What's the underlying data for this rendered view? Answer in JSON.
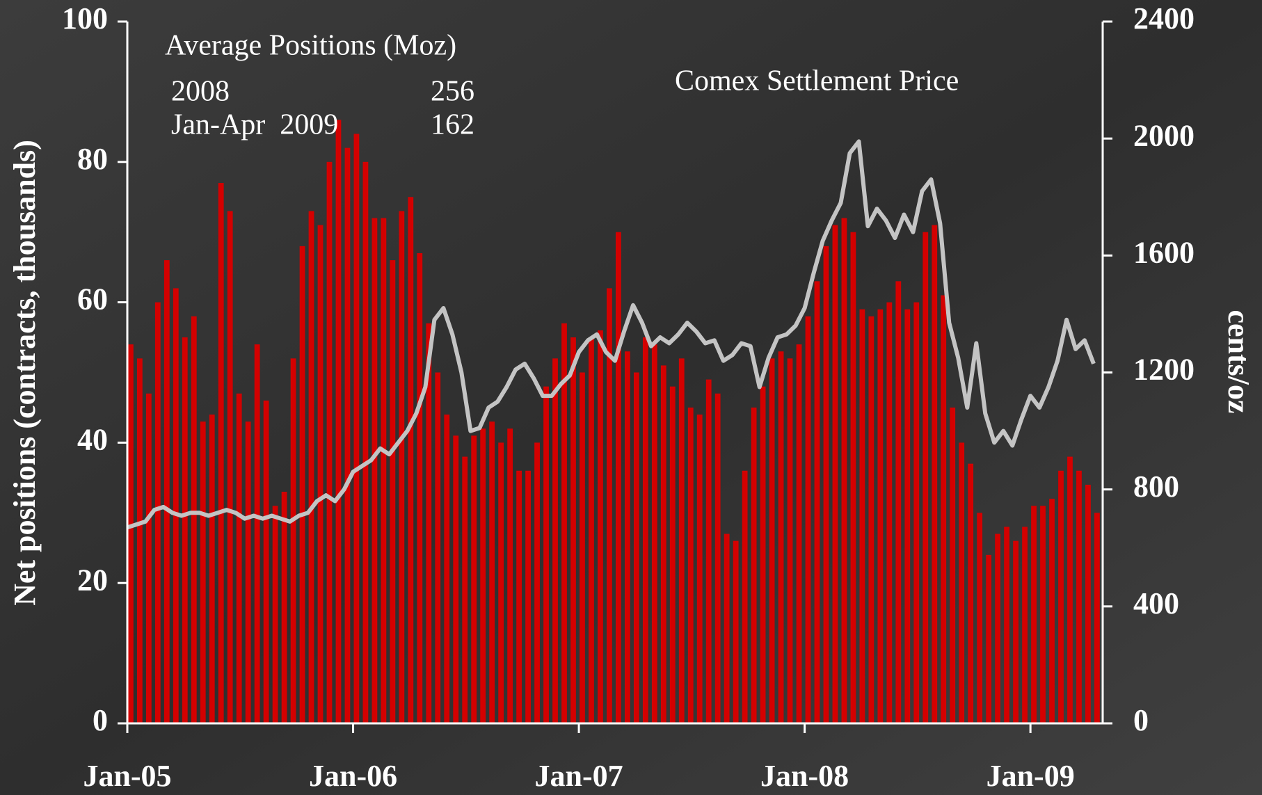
{
  "chart_data": {
    "type": "combo",
    "annotations": {
      "title": "Average Positions (Moz)",
      "rows": [
        [
          "2008",
          256
        ],
        [
          "Jan-Apr  2009",
          162
        ]
      ]
    },
    "ylabel": "Net positions (contracts, thousands)",
    "y2label": "cents/oz",
    "xlim": [
      2005,
      2009.32
    ],
    "xticks": [
      {
        "value": 2005,
        "label": "Jan-05"
      },
      {
        "value": 2006,
        "label": "Jan-06"
      },
      {
        "value": 2007,
        "label": "Jan-07"
      },
      {
        "value": 2008,
        "label": "Jan-08"
      },
      {
        "value": 2009,
        "label": "Jan-09"
      }
    ],
    "ylim": [
      0,
      100
    ],
    "yticks": [
      0,
      20,
      40,
      60,
      80,
      100
    ],
    "y2lim": [
      0,
      2400
    ],
    "y2ticks": [
      0,
      400,
      800,
      1200,
      1600,
      2000,
      2400
    ],
    "x": [
      2005,
      2005.04,
      2005.08,
      2005.12,
      2005.16,
      2005.2,
      2005.24,
      2005.28,
      2005.32,
      2005.36,
      2005.4,
      2005.44,
      2005.48,
      2005.52,
      2005.56,
      2005.6,
      2005.64,
      2005.68,
      2005.72,
      2005.76,
      2005.8,
      2005.84,
      2005.88,
      2005.92,
      2005.96,
      2006,
      2006.04,
      2006.08,
      2006.12,
      2006.16,
      2006.2,
      2006.24,
      2006.28,
      2006.32,
      2006.36,
      2006.4,
      2006.44,
      2006.48,
      2006.52,
      2006.56,
      2006.6,
      2006.64,
      2006.68,
      2006.72,
      2006.76,
      2006.8,
      2006.84,
      2006.88,
      2006.92,
      2006.96,
      2007,
      2007.04,
      2007.08,
      2007.12,
      2007.16,
      2007.2,
      2007.24,
      2007.28,
      2007.32,
      2007.36,
      2007.4,
      2007.44,
      2007.48,
      2007.52,
      2007.56,
      2007.6,
      2007.64,
      2007.68,
      2007.72,
      2007.76,
      2007.8,
      2007.84,
      2007.88,
      2007.92,
      2007.96,
      2008,
      2008.04,
      2008.08,
      2008.12,
      2008.16,
      2008.2,
      2008.24,
      2008.28,
      2008.32,
      2008.36,
      2008.4,
      2008.44,
      2008.48,
      2008.52,
      2008.56,
      2008.6,
      2008.64,
      2008.68,
      2008.72,
      2008.76,
      2008.8,
      2008.84,
      2008.88,
      2008.92,
      2008.96,
      2009,
      2009.04,
      2009.08,
      2009.12,
      2009.16,
      2009.2,
      2009.24,
      2009.28
    ],
    "series": [
      {
        "type": "bar",
        "color": "#d40000",
        "values": [
          54,
          52,
          47,
          60,
          66,
          62,
          55,
          58,
          43,
          44,
          77,
          73,
          47,
          43,
          54,
          46,
          31,
          33,
          52,
          68,
          73,
          71,
          80,
          86,
          82,
          84,
          80,
          72,
          72,
          66,
          73,
          75,
          67,
          57,
          50,
          44,
          41,
          38,
          41,
          42,
          43,
          40,
          42,
          36,
          36,
          40,
          48,
          52,
          57,
          55,
          50,
          55,
          56,
          62,
          70,
          53,
          50,
          55,
          54,
          51,
          48,
          52,
          45,
          44,
          49,
          47,
          27,
          26,
          36,
          45,
          48,
          52,
          53,
          52,
          54,
          58,
          63,
          68,
          71,
          72,
          70,
          59,
          58,
          59,
          60,
          63,
          59,
          60,
          70,
          71,
          61,
          45,
          40,
          37,
          30,
          24,
          27,
          28,
          26,
          28,
          31,
          31,
          32,
          36,
          38,
          36,
          34,
          30
        ]
      },
      {
        "type": "line",
        "axis": "y2",
        "name": "Comex Settlement Price",
        "color": "#c4c4c4",
        "values": [
          670,
          680,
          690,
          730,
          740,
          720,
          710,
          720,
          720,
          710,
          720,
          730,
          720,
          700,
          710,
          700,
          710,
          700,
          690,
          710,
          720,
          760,
          780,
          760,
          800,
          860,
          880,
          900,
          940,
          920,
          960,
          1000,
          1060,
          1150,
          1380,
          1420,
          1330,
          1200,
          1000,
          1010,
          1080,
          1100,
          1150,
          1210,
          1230,
          1180,
          1120,
          1120,
          1160,
          1190,
          1270,
          1310,
          1330,
          1270,
          1240,
          1340,
          1430,
          1370,
          1290,
          1320,
          1300,
          1330,
          1370,
          1340,
          1300,
          1310,
          1240,
          1260,
          1300,
          1290,
          1150,
          1250,
          1320,
          1330,
          1360,
          1420,
          1540,
          1650,
          1720,
          1780,
          1950,
          1990,
          1700,
          1760,
          1720,
          1660,
          1740,
          1680,
          1820,
          1860,
          1710,
          1370,
          1250,
          1080,
          1300,
          1060,
          960,
          1000,
          950,
          1040,
          1120,
          1080,
          1150,
          1240,
          1380,
          1280,
          1310,
          1230
        ]
      }
    ]
  }
}
